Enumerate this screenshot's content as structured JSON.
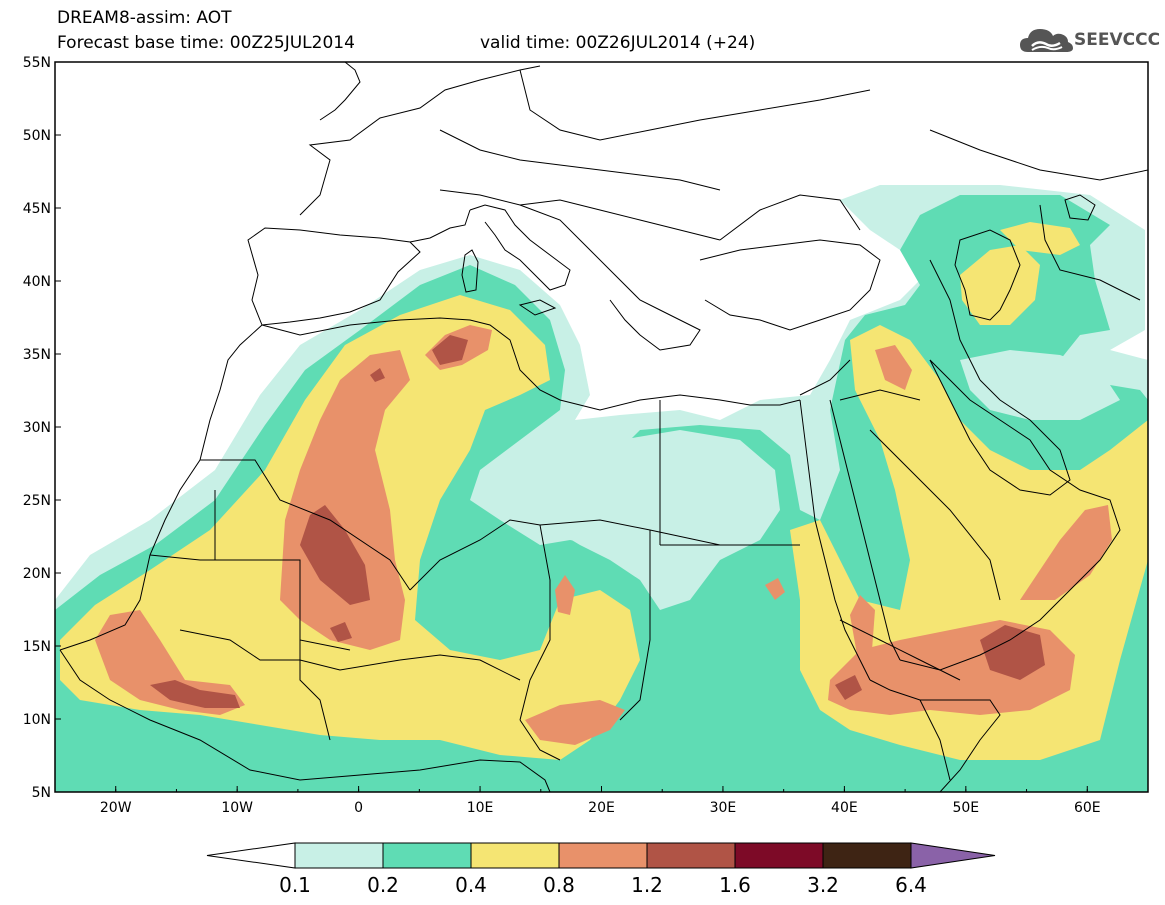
{
  "title": {
    "line1": "DREAM8-assim: AOT",
    "line2": "Forecast base time: 00Z25JUL2014",
    "valid": "valid time: 00Z26JUL2014 (+24)"
  },
  "logo": {
    "text": "SEEVCCC",
    "icon": "cloud-icon"
  },
  "map": {
    "lon_range": [
      -25,
      65
    ],
    "lat_range": [
      5,
      55
    ],
    "ocean_color": "#ffffff",
    "land_boundary_color": "#000000",
    "x_ticks": [
      {
        "lon": -20,
        "label": "20W"
      },
      {
        "lon": -10,
        "label": "10W"
      },
      {
        "lon": 0,
        "label": "0"
      },
      {
        "lon": 10,
        "label": "10E"
      },
      {
        "lon": 20,
        "label": "20E"
      },
      {
        "lon": 30,
        "label": "30E"
      },
      {
        "lon": 40,
        "label": "40E"
      },
      {
        "lon": 50,
        "label": "50E"
      },
      {
        "lon": 60,
        "label": "60E"
      }
    ],
    "y_ticks": [
      {
        "lat": 55,
        "label": "55N"
      },
      {
        "lat": 50,
        "label": "50N"
      },
      {
        "lat": 45,
        "label": "45N"
      },
      {
        "lat": 40,
        "label": "40N"
      },
      {
        "lat": 35,
        "label": "35N"
      },
      {
        "lat": 30,
        "label": "30N"
      },
      {
        "lat": 25,
        "label": "25N"
      },
      {
        "lat": 20,
        "label": "20N"
      },
      {
        "lat": 15,
        "label": "15N"
      },
      {
        "lat": 10,
        "label": "10N"
      },
      {
        "lat": 5,
        "label": "5N"
      }
    ]
  },
  "colorbar": {
    "levels": [
      "0.1",
      "0.2",
      "0.4",
      "0.8",
      "1.2",
      "1.6",
      "3.2",
      "6.4"
    ],
    "colors": {
      "under": "#ffffff",
      "c1": "#c8f0e6",
      "c2": "#5fdcb4",
      "c3": "#f5e573",
      "c4": "#e8916a",
      "c5": "#b05446",
      "c6": "#7d0a27",
      "c7": "#3e2414",
      "over": "#8a62a8"
    }
  }
}
